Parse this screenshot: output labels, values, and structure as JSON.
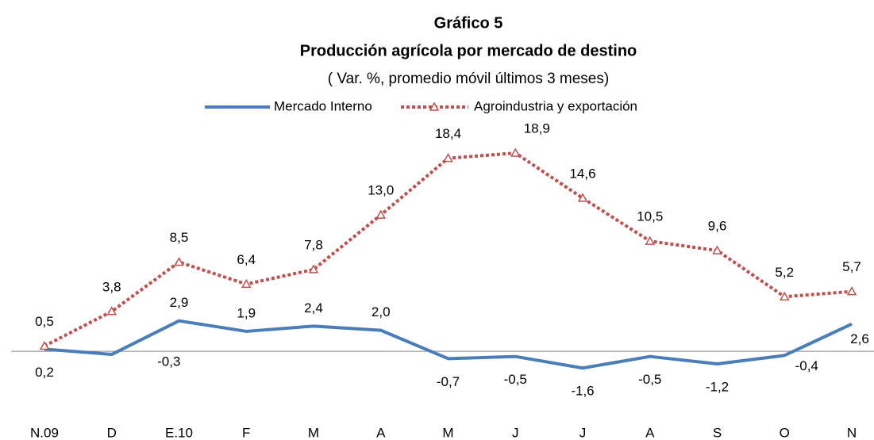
{
  "chart_data": {
    "type": "line",
    "title": "Gráfico 5",
    "subtitle": "Producción agrícola por mercado de destino",
    "note": "( Var. %, promedio móvil últimos 3 meses)",
    "categories": [
      "N.09",
      "D",
      "E.10",
      "F",
      "M",
      "A",
      "M",
      "J",
      "J",
      "A",
      "S",
      "O",
      "N"
    ],
    "series": [
      {
        "name": "Mercado Interno",
        "color": "#4a7ebb",
        "values": [
          0.2,
          -0.3,
          2.9,
          1.9,
          2.4,
          2.0,
          -0.7,
          -0.5,
          -1.6,
          -0.5,
          -1.2,
          -0.4,
          2.6
        ],
        "value_labels": [
          "0,2",
          "-0,3",
          "2,9",
          "1,9",
          "2,4",
          "2,0",
          "-0,7",
          "-0,5",
          "-1,6",
          "-0,5",
          "-1,2",
          "-0,4",
          "2,6"
        ]
      },
      {
        "name": "Agroindustria y exportación",
        "color": "#c0504d",
        "values": [
          0.5,
          3.8,
          8.5,
          6.4,
          7.8,
          13.0,
          18.4,
          18.9,
          14.6,
          10.5,
          9.6,
          5.2,
          5.7
        ],
        "value_labels": [
          "0,5",
          "3,8",
          "8,5",
          "6,4",
          "7,8",
          "13,0",
          "18,4",
          "18,9",
          "14,6",
          "10,5",
          "9,6",
          "5,2",
          "5,7"
        ]
      }
    ],
    "ylim": [
      -4,
      22
    ]
  }
}
